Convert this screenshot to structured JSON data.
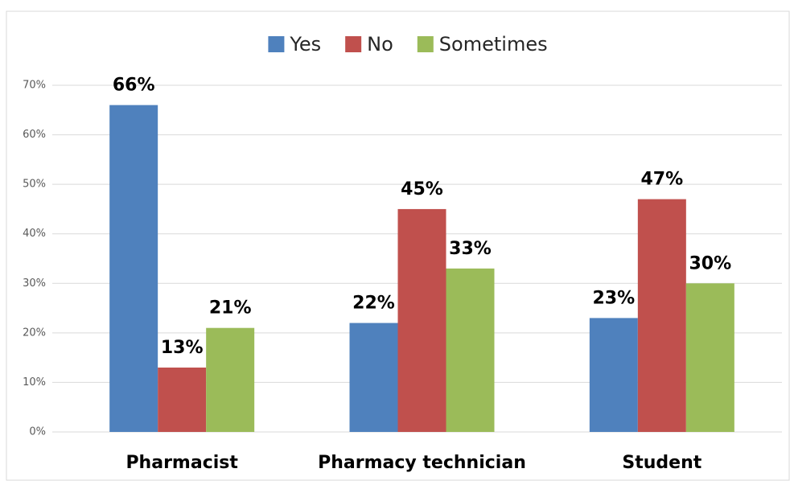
{
  "chart_data": {
    "type": "bar",
    "categories": [
      "Pharmacist",
      "Pharmacy technician",
      "Student"
    ],
    "series": [
      {
        "name": "Yes",
        "color": "#4f81bd",
        "values": [
          66,
          22,
          23
        ],
        "value_labels": [
          "66%",
          "22%",
          "23%"
        ]
      },
      {
        "name": "No",
        "color": "#c0504d",
        "values": [
          13,
          45,
          47
        ],
        "value_labels": [
          "13%",
          "45%",
          "47%"
        ]
      },
      {
        "name": "Sometimes",
        "color": "#9bbb59",
        "values": [
          21,
          33,
          30
        ],
        "value_labels": [
          "21%",
          "33%",
          "30%"
        ]
      }
    ],
    "ylim": [
      0,
      70
    ],
    "yticks": [
      {
        "value": 0,
        "label": "0%"
      },
      {
        "value": 10,
        "label": "10%"
      },
      {
        "value": 20,
        "label": "20%"
      },
      {
        "value": 30,
        "label": "30%"
      },
      {
        "value": 40,
        "label": "40%"
      },
      {
        "value": 50,
        "label": "50%"
      },
      {
        "value": 60,
        "label": "60%"
      },
      {
        "value": 70,
        "label": "70%"
      }
    ],
    "grid": true,
    "legend": "top"
  }
}
